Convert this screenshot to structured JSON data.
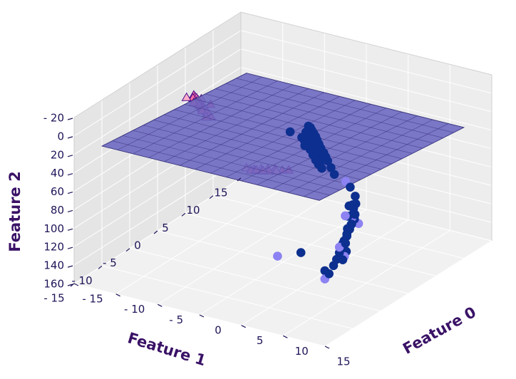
{
  "chart_data": {
    "type": "scatter",
    "projection": "3d",
    "xlabel": "Feature 0",
    "ylabel": "Feature 1",
    "zlabel": "Feature 2",
    "x_ticks": [
      "- 15",
      "- 10",
      "- 5",
      "0",
      "5",
      "10",
      "15"
    ],
    "y_ticks": [
      "- 15",
      "- 10",
      "- 5",
      "0",
      "5",
      "10",
      "15"
    ],
    "z_ticks": [
      "- 20",
      "0",
      "20",
      "40",
      "60",
      "80",
      "100",
      "120",
      "140",
      "160"
    ],
    "xlim": [
      -15,
      15
    ],
    "ylim": [
      -15,
      15
    ],
    "zlim": [
      -20,
      160
    ],
    "z_inverted": true,
    "grid": true,
    "colors": {
      "class0": "#0d2f8f",
      "class0_light": "#8c82f2",
      "class1": "#ff6fa0",
      "class1_light": "#ffaec8",
      "class1_edge": "#4a0b8c",
      "plane": "#6a66c0",
      "plane_edge": "#332d7a"
    },
    "plane": {
      "x_range": [
        -13,
        13
      ],
      "y_range": [
        -13,
        13
      ],
      "z_corners": [
        34,
        34,
        14,
        14
      ]
    },
    "series": [
      {
        "marker": "circle",
        "color": "#0d2f8f",
        "points": [
          [
            -2.5,
            -13,
            120
          ],
          [
            -2.7,
            -12.7,
            112
          ],
          [
            -2.9,
            -12.4,
            104
          ],
          [
            -3.0,
            -12.2,
            99
          ],
          [
            -3.1,
            -12.0,
            94
          ],
          [
            -3.3,
            -11.8,
            89
          ],
          [
            -3.4,
            -11.6,
            84
          ],
          [
            -3.5,
            -11.4,
            79
          ],
          [
            -3.6,
            -11.3,
            75
          ],
          [
            -3.7,
            -11.1,
            71
          ],
          [
            -3.8,
            -10.9,
            67
          ],
          [
            -3.9,
            -10.8,
            64
          ],
          [
            -4.0,
            -10.6,
            62
          ],
          [
            -2.8,
            -11.4,
            99
          ],
          [
            -3.0,
            -11.2,
            94
          ],
          [
            -3.2,
            -11.0,
            89
          ],
          [
            -3.3,
            -10.8,
            84
          ],
          [
            -3.5,
            -10.6,
            79
          ],
          [
            -3.6,
            -10.4,
            74
          ],
          [
            -3.7,
            -10.2,
            69
          ],
          [
            -3.9,
            -10.0,
            66
          ],
          [
            -4.1,
            -10.2,
            76
          ],
          [
            -4.3,
            -10.4,
            83
          ],
          [
            -2.6,
            -10.3,
            99
          ],
          [
            -2.8,
            -10.1,
            94
          ],
          [
            -3.0,
            -9.9,
            88
          ],
          [
            -3.2,
            -9.7,
            82
          ],
          [
            -3.4,
            -9.5,
            77
          ],
          [
            -3.6,
            -9.3,
            72
          ],
          [
            -3.8,
            -9.1,
            68
          ],
          [
            -2.4,
            -10.6,
            104
          ],
          [
            -0.8,
            -2.5,
            30
          ],
          [
            12.5,
            5.8,
            38
          ],
          [
            12.7,
            6.0,
            45
          ],
          [
            12.5,
            6.1,
            50
          ],
          [
            12.6,
            6.3,
            55
          ],
          [
            12.8,
            6.4,
            60
          ],
          [
            12.6,
            6.6,
            65
          ],
          [
            12.5,
            6.8,
            70
          ],
          [
            12.3,
            7.0,
            75
          ],
          [
            12.1,
            7.2,
            82
          ],
          [
            11.9,
            7.4,
            88
          ],
          [
            11.8,
            7.6,
            94
          ],
          [
            11.6,
            7.8,
            101
          ],
          [
            11.3,
            7.9,
            108
          ],
          [
            10.9,
            8.1,
            117
          ],
          [
            10.0,
            7.5,
            118
          ],
          [
            11.8,
            7.0,
            104
          ],
          [
            12.1,
            6.8,
            95
          ],
          [
            12.0,
            7.3,
            85
          ],
          [
            12.5,
            7.2,
            68
          ],
          [
            12.1,
            6.5,
            58
          ],
          [
            12.3,
            6.6,
            46
          ],
          [
            13.2,
            6.9,
            52
          ],
          [
            13.0,
            7.3,
            62
          ],
          [
            12.7,
            7.6,
            74
          ],
          [
            12.8,
            8.0,
            80
          ],
          [
            12.2,
            5.8,
            48
          ],
          [
            8.0,
            8.8,
            98
          ],
          [
            11.1,
            4.6,
            36
          ]
        ]
      },
      {
        "marker": "circle",
        "color": "#8c82f2",
        "points": [
          [
            -1.8,
            -14.0,
            130
          ],
          [
            6.6,
            10.9,
            97
          ],
          [
            10.0,
            7.5,
            127
          ],
          [
            12.6,
            6.5,
            58
          ],
          [
            12.0,
            7.0,
            100
          ],
          [
            12.5,
            5.2,
            70
          ],
          [
            11.8,
            7.6,
            88
          ],
          [
            12.3,
            7.3,
            54
          ]
        ]
      },
      {
        "marker": "triangle",
        "color": "#ff6fa0",
        "points": [
          [
            -10.0,
            1.0,
            -2
          ],
          [
            -9.5,
            1.5,
            -3
          ],
          [
            -9.0,
            2.0,
            -5
          ],
          [
            -8.5,
            2.5,
            -6
          ],
          [
            -8.0,
            3.0,
            -7
          ],
          [
            -7.5,
            3.5,
            -8
          ],
          [
            -7.0,
            4.0,
            -9
          ],
          [
            -6.5,
            4.5,
            -10
          ],
          [
            -6.0,
            5.0,
            -11
          ],
          [
            -5.5,
            5.5,
            -12
          ],
          [
            -5.0,
            6.0,
            -13
          ],
          [
            -4.5,
            6.5,
            -14
          ],
          [
            -9.3,
            2.2,
            -5
          ],
          [
            -8.2,
            3.3,
            -8
          ],
          [
            -7.1,
            4.3,
            -10
          ],
          [
            -6.2,
            5.2,
            -12
          ],
          [
            -5.0,
            6.1,
            -14
          ],
          [
            -4.3,
            7.3,
            -15
          ],
          [
            -8.7,
            1.6,
            -3
          ],
          [
            -7.6,
            3.8,
            -9
          ],
          [
            -6.6,
            4.8,
            -11
          ],
          [
            -5.8,
            5.8,
            -13
          ],
          [
            -3.8,
            7.2,
            -16
          ],
          [
            -9.8,
            2.6,
            -6
          ],
          [
            -8.0,
            4.0,
            -10
          ],
          [
            -6.8,
            2.8,
            -6
          ],
          [
            4.5,
            12.0,
            4
          ],
          [
            5.0,
            12.5,
            2
          ],
          [
            5.5,
            12.2,
            0
          ],
          [
            6.0,
            12.8,
            -1
          ],
          [
            6.5,
            12.5,
            -3
          ],
          [
            7.0,
            13.0,
            -4
          ],
          [
            7.5,
            12.7,
            -6
          ],
          [
            8.0,
            13.2,
            -7
          ],
          [
            8.5,
            12.9,
            -8
          ],
          [
            4.8,
            13.0,
            0
          ],
          [
            5.8,
            13.5,
            -4
          ],
          [
            6.8,
            13.8,
            -7
          ],
          [
            4.0,
            12.6,
            1
          ],
          [
            5.3,
            11.8,
            3
          ],
          [
            6.3,
            12.1,
            0
          ],
          [
            7.3,
            12.3,
            -3
          ],
          [
            8.8,
            12.2,
            -6
          ]
        ]
      }
    ]
  }
}
